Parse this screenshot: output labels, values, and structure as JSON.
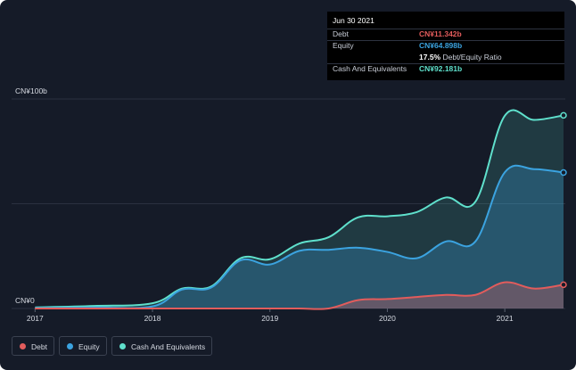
{
  "chart_data": {
    "type": "area",
    "ylim": [
      0,
      100
    ],
    "y_ticks": [
      {
        "value": 100,
        "label": "CN¥100b"
      },
      {
        "value": 0,
        "label": "CN¥0"
      }
    ],
    "x_ticks": [
      {
        "value": 2017.0,
        "label": "2017"
      },
      {
        "value": 2018.0,
        "label": "2018"
      },
      {
        "value": 2019.0,
        "label": "2019"
      },
      {
        "value": 2020.0,
        "label": "2020"
      },
      {
        "value": 2021.0,
        "label": "2021"
      }
    ],
    "xlim": [
      2016.99,
      2021.5
    ],
    "grid": true,
    "legend_placement": "bottom-left",
    "series": [
      {
        "name": "Cash And Equivalents",
        "color": "#5fe0cc",
        "x": [
          2017.0,
          2017.5,
          2018.0,
          2018.25,
          2018.5,
          2018.75,
          2019.0,
          2019.25,
          2019.5,
          2019.75,
          2020.0,
          2020.25,
          2020.5,
          2020.75,
          2021.0,
          2021.25,
          2021.5
        ],
        "values": [
          0.5,
          1.2,
          2.5,
          9.5,
          10.5,
          24,
          23.5,
          31,
          34,
          43.5,
          44,
          46,
          53,
          51,
          92,
          90,
          92.181
        ]
      },
      {
        "name": "Equity",
        "color": "#3ba3e0",
        "x": [
          2017.0,
          2017.5,
          2018.0,
          2018.25,
          2018.5,
          2018.75,
          2019.0,
          2019.25,
          2019.5,
          2019.75,
          2020.0,
          2020.25,
          2020.5,
          2020.75,
          2021.0,
          2021.25,
          2021.5
        ],
        "values": [
          0.2,
          0.5,
          1.0,
          9,
          10,
          23,
          21,
          27.5,
          28,
          29,
          27,
          24,
          32,
          32,
          65,
          66.5,
          64.898
        ]
      },
      {
        "name": "Debt",
        "color": "#e25c5c",
        "x": [
          2017.0,
          2017.5,
          2018.0,
          2018.25,
          2018.5,
          2018.75,
          2019.0,
          2019.25,
          2019.5,
          2019.75,
          2020.0,
          2020.25,
          2020.5,
          2020.75,
          2021.0,
          2021.25,
          2021.5
        ],
        "values": [
          0,
          0,
          0,
          0,
          0,
          0,
          0,
          0,
          0,
          4,
          4.5,
          5.5,
          6.5,
          6.5,
          12.5,
          9.5,
          11.342
        ]
      }
    ],
    "tooltip": {
      "date": "Jun 30 2021",
      "rows": [
        {
          "label": "Debt",
          "value": "CN¥11.342b",
          "color": "#e25c5c"
        },
        {
          "label": "Equity",
          "value": "CN¥64.898b",
          "color": "#3ba3e0"
        },
        {
          "label": "",
          "value": "17.5%",
          "suffix": " Debt/Equity Ratio",
          "color": "#ffffff"
        },
        {
          "label": "Cash And Equivalents",
          "value": "CN¥92.181b",
          "color": "#5fe0cc"
        }
      ]
    },
    "legend": [
      {
        "label": "Debt",
        "color": "#e25c5c"
      },
      {
        "label": "Equity",
        "color": "#3ba3e0"
      },
      {
        "label": "Cash And Equivalents",
        "color": "#5fe0cc"
      }
    ]
  }
}
